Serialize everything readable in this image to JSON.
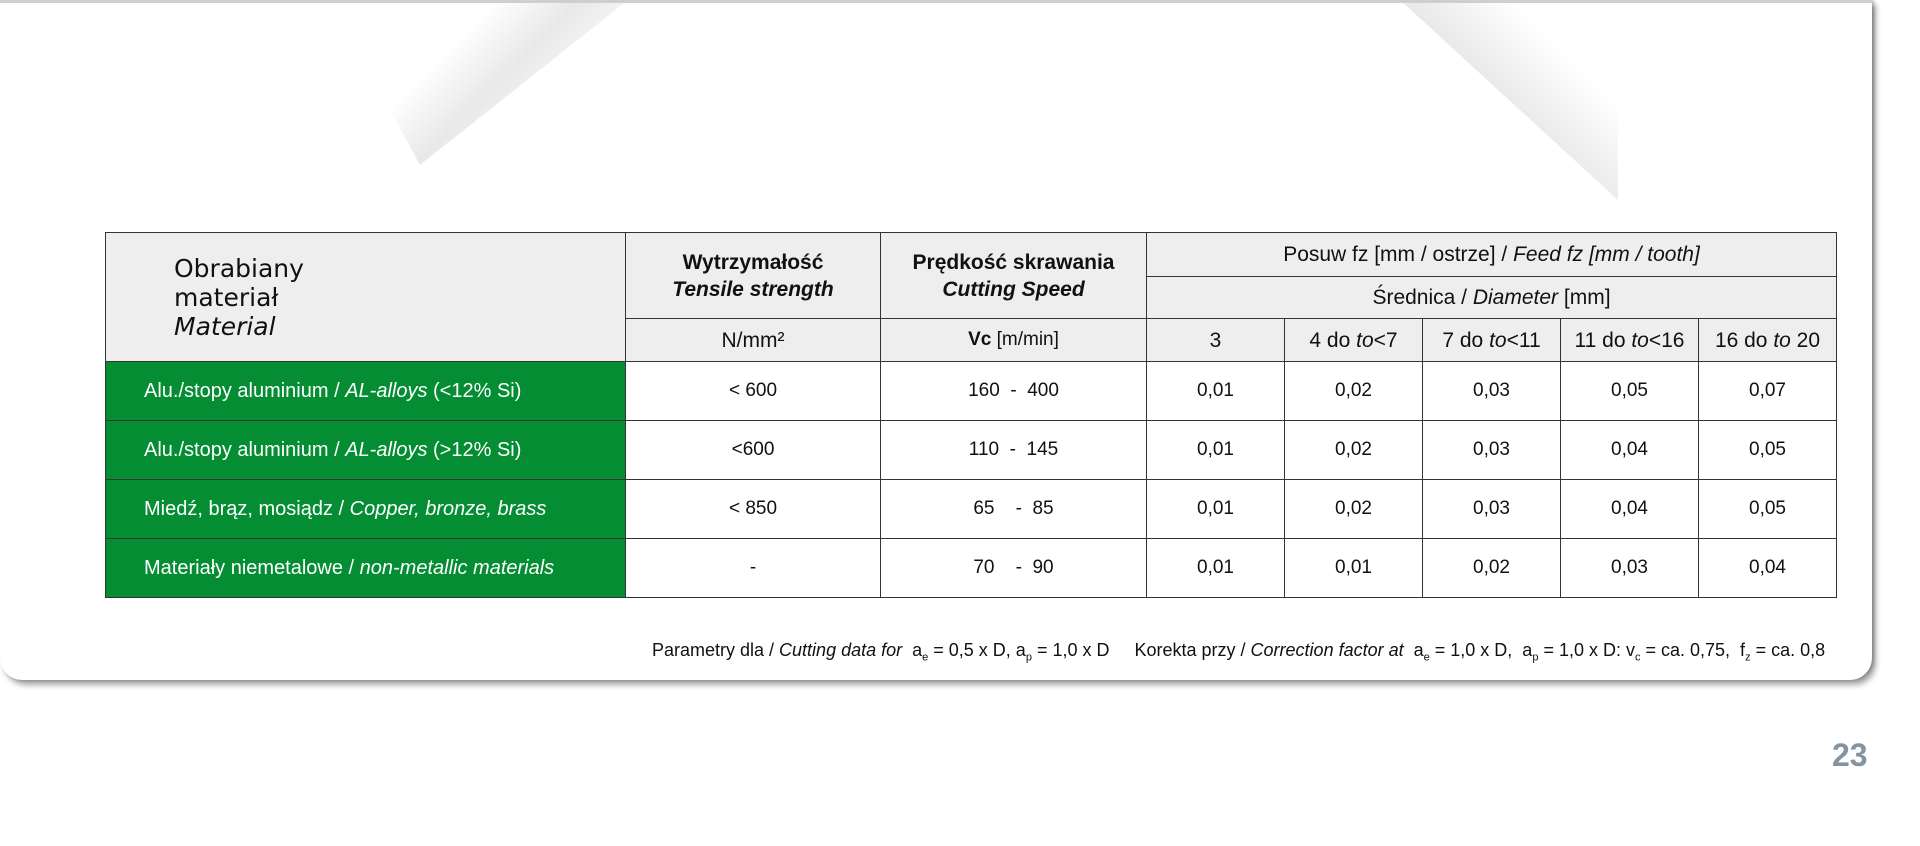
{
  "table": {
    "header": {
      "material": {
        "line1": "Obrabiany",
        "line2": "materiał",
        "line3": "Material"
      },
      "tensile": {
        "main": "Wytrzymałość",
        "sub": "Tensile strength",
        "unit": "N/mm²"
      },
      "speed": {
        "main": "Prędkość skrawania",
        "sub": "Cutting Speed",
        "unit_bold": "Vc",
        "unit_rest": " [m/min]"
      },
      "feed": {
        "main": "Posuw fz  [mm / ostrze]  / ",
        "sub": "Feed fz  [mm / tooth]"
      },
      "diameter": {
        "main": "Średnica / ",
        "sub": "Diameter",
        "unit": " [mm]"
      },
      "diameters": [
        {
          "a": "3",
          "b": "",
          "c": ""
        },
        {
          "a": "4 do ",
          "b": "to",
          "c": "<7"
        },
        {
          "a": "7 do ",
          "b": "to",
          "c": "<11"
        },
        {
          "a": "11 do ",
          "b": "to",
          "c": "<16"
        },
        {
          "a": "16  do ",
          "b": "to",
          "c": " 20"
        }
      ]
    },
    "rows": [
      {
        "pl": "Alu./stopy aluminium / ",
        "en": "AL-alloys",
        "extra": " (<12% Si)",
        "tensile": "< 600",
        "speed": "160  -  400",
        "feeds": [
          "0,01",
          "0,02",
          "0,03",
          "0,05",
          "0,07"
        ]
      },
      {
        "pl": "Alu./stopy aluminium / ",
        "en": "AL-alloys",
        "extra": " (>12% Si)",
        "tensile": "<600",
        "speed": "110  -  145",
        "feeds": [
          "0,01",
          "0,02",
          "0,03",
          "0,04",
          "0,05"
        ]
      },
      {
        "pl": "Miedź, brąz, mosiądz / ",
        "en": "Copper, bronze, brass",
        "extra": "",
        "tensile": "< 850",
        "speed": "65    -  85",
        "feeds": [
          "0,01",
          "0,02",
          "0,03",
          "0,04",
          "0,05"
        ]
      },
      {
        "pl": "Materiały niemetalowe / ",
        "en": "non-metallic materials",
        "extra": "",
        "tensile": "-",
        "speed": "70    -  90",
        "feeds": [
          "0,01",
          "0,01",
          "0,02",
          "0,03",
          "0,04"
        ]
      }
    ]
  },
  "footnote": {
    "p1": "Parametry dla / ",
    "p1i": "Cutting data for",
    "p2": "  a",
    "s1": "e",
    "p3": " = 0,5 x D, a",
    "s2": "p",
    "p4": " = 1,0 x D     Korekta przy / ",
    "p4i": "Correction factor at",
    "p5": "  a",
    "s3": "e",
    "p6": " = 1,0 x D,  a",
    "s4": "p",
    "p7": " = 1,0 x D: v",
    "s5": "c",
    "p8": " = ca. 0,75,  f",
    "s6": "z",
    "p9": " = ca. 0,8"
  },
  "page_number": "23",
  "colors": {
    "material_green": "#058d33",
    "header_gray": "#eeeeee",
    "page_number": "#8493a2"
  }
}
